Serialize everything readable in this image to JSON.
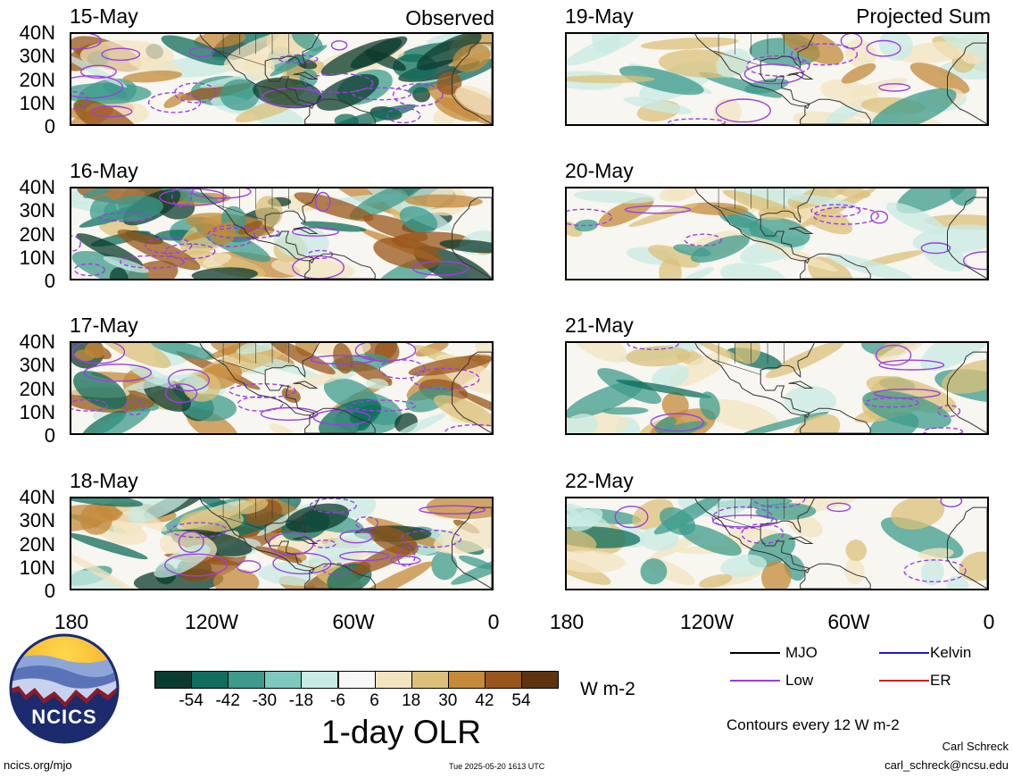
{
  "figure": {
    "main_title": "1-day OLR",
    "units": "W m-2",
    "contour_note": "Contours every 12 W m-2",
    "observed_label": "Observed",
    "projected_label": "Projected Sum"
  },
  "panels": {
    "observed": [
      {
        "date": "15-May"
      },
      {
        "date": "16-May"
      },
      {
        "date": "17-May"
      },
      {
        "date": "18-May"
      }
    ],
    "projected": [
      {
        "date": "19-May"
      },
      {
        "date": "20-May"
      },
      {
        "date": "21-May"
      },
      {
        "date": "22-May"
      }
    ]
  },
  "axes": {
    "lat_ticks": [
      "40N",
      "30N",
      "20N",
      "10N",
      "0"
    ],
    "lon_ticks": [
      "180",
      "120W",
      "60W",
      "0"
    ],
    "lon_range": [
      -180,
      0
    ],
    "lat_range": [
      0,
      40
    ]
  },
  "colorbar": {
    "labels": [
      "-54",
      "-42",
      "-30",
      "-18",
      "-6",
      "6",
      "18",
      "30",
      "42",
      "54"
    ],
    "colors": [
      "#0b3b2e",
      "#0f6e5c",
      "#3e9b8c",
      "#7ec9bd",
      "#c8ebe4",
      "#f7f7f7",
      "#f3e4c0",
      "#dcc07a",
      "#c48a3a",
      "#98561a",
      "#5e3410"
    ]
  },
  "legend": {
    "items": [
      {
        "label": "MJO",
        "color": "#000000"
      },
      {
        "label": "Kelvin",
        "color": "#1a1acc"
      },
      {
        "label": "Low",
        "color": "#9b3fe0"
      },
      {
        "label": "ER",
        "color": "#d21e1e"
      }
    ]
  },
  "footer": {
    "logo_text": "NCICS",
    "website": "ncics.org/mjo",
    "timestamp": "Tue 2025-05-20 1613 UTC",
    "author": "Carl Schreck",
    "email": "carl_schreck@ncsu.edu"
  }
}
